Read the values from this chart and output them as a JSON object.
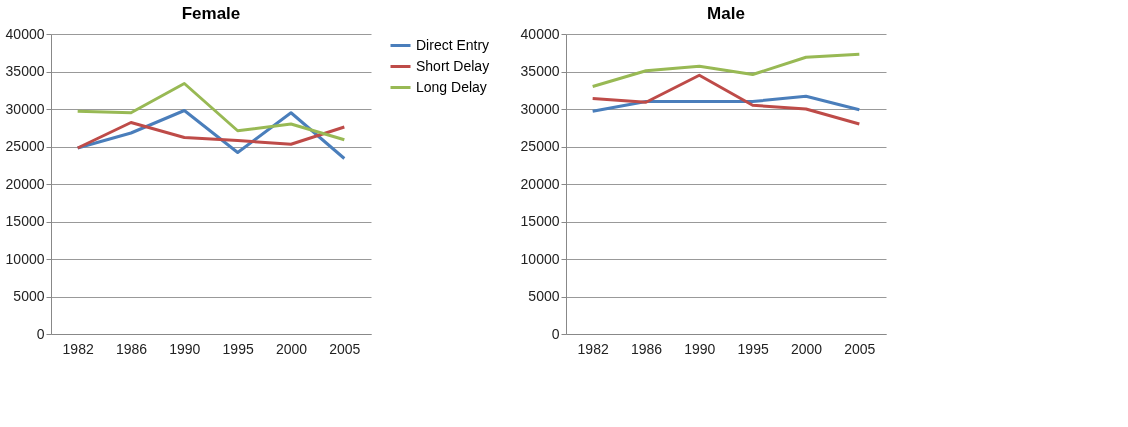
{
  "chart_data": [
    {
      "type": "line",
      "title": "Female",
      "categories": [
        "1982",
        "1986",
        "1990",
        "1995",
        "2000",
        "2005"
      ],
      "series": [
        {
          "name": "Direct Entry",
          "color": "#4a7ebb",
          "values": [
            24800,
            26800,
            29800,
            24200,
            29500,
            23400
          ]
        },
        {
          "name": "Short Delay",
          "color": "#be4b48",
          "values": [
            24800,
            28200,
            26200,
            25800,
            25300,
            27600
          ]
        },
        {
          "name": "Long Delay",
          "color": "#98b954",
          "values": [
            29700,
            29500,
            33400,
            27100,
            28000,
            25900
          ]
        }
      ],
      "ylim": [
        0,
        40000
      ],
      "yticks": [
        0,
        5000,
        10000,
        15000,
        20000,
        25000,
        30000,
        35000,
        40000
      ],
      "grid": "y",
      "legend": "right"
    },
    {
      "type": "line",
      "title": "Male",
      "categories": [
        "1982",
        "1986",
        "1990",
        "1995",
        "2000",
        "2005"
      ],
      "series": [
        {
          "color": "#4a7ebb",
          "values": [
            29700,
            31000,
            31000,
            31000,
            31700,
            29900
          ]
        },
        {
          "color": "#be4b48",
          "values": [
            31400,
            30900,
            34500,
            30500,
            30000,
            28000
          ]
        },
        {
          "color": "#98b954",
          "values": [
            33000,
            35100,
            35700,
            34600,
            36900,
            37300
          ]
        }
      ],
      "ylim": [
        0,
        40000
      ],
      "yticks": [
        0,
        5000,
        10000,
        15000,
        20000,
        25000,
        30000,
        35000,
        40000
      ],
      "grid": "y",
      "legend": false
    }
  ]
}
